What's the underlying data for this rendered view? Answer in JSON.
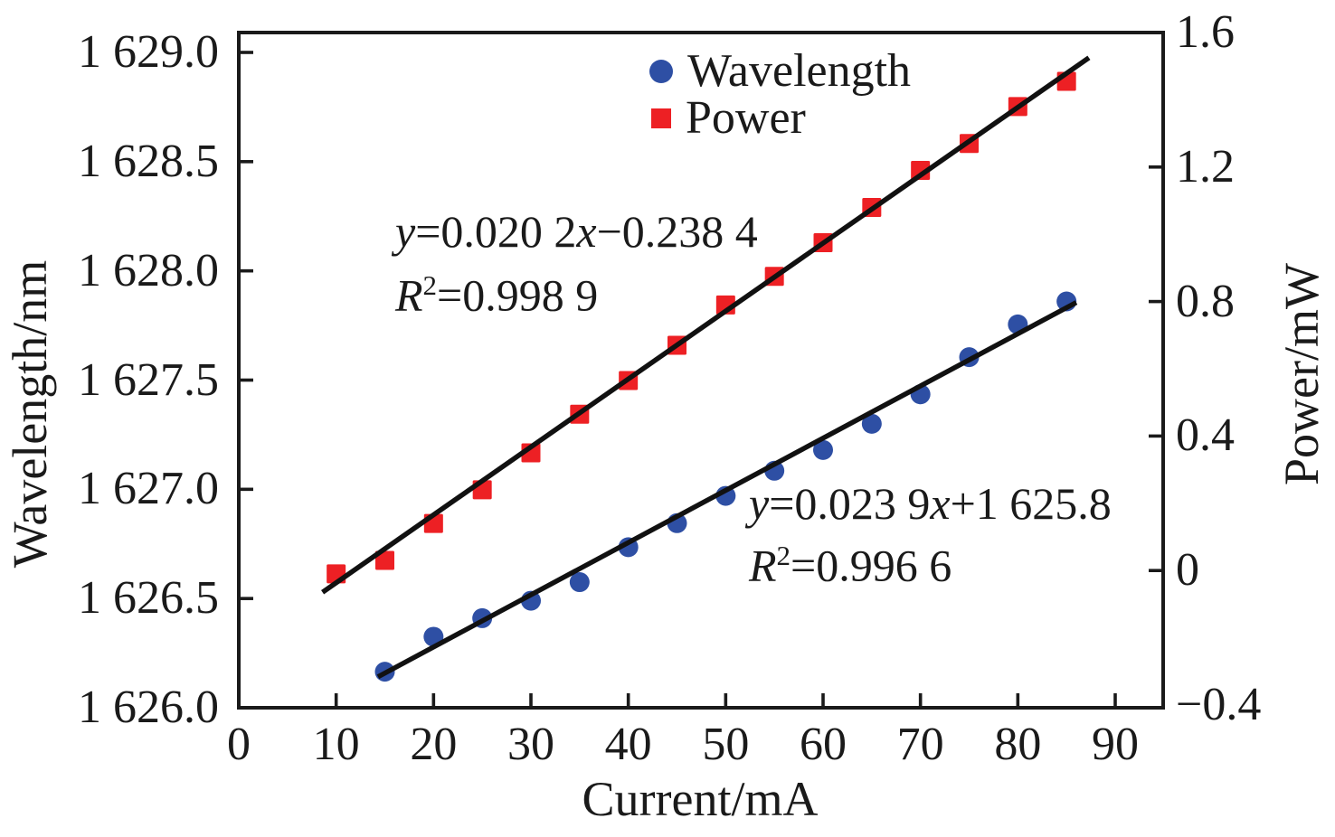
{
  "figure": {
    "background": "#ffffff",
    "axis_color": "#1a1a1a",
    "fit_line_color": "#111111"
  },
  "legend": {
    "items": [
      {
        "label": "Wavelength",
        "marker": "circle",
        "color": "#2e4fa4"
      },
      {
        "label": "Power",
        "marker": "square",
        "color": "#ed2024"
      }
    ]
  },
  "annotations": {
    "power_fit": {
      "var_y": "y",
      "body_1": "=0.020 2",
      "var_x": "x",
      "body_2": "−0.238 4",
      "r_var": "R",
      "r_exp": "2",
      "r_rest": "=0.998 9"
    },
    "wavelength_fit": {
      "var_y": "y",
      "body_1": "=0.023 9",
      "var_x": "x",
      "body_2": "+1 625.8",
      "r_var": "R",
      "r_exp": "2",
      "r_rest": "=0.996 6"
    }
  },
  "chart_data": {
    "type": "scatter",
    "title": "",
    "grid": false,
    "legend_position": "top-center-inside",
    "x_axis": {
      "label": "Current/mA",
      "min": 0,
      "max": 95,
      "tick_values": [
        0,
        10,
        20,
        30,
        40,
        50,
        60,
        70,
        80,
        90
      ],
      "tick_labels": [
        "0",
        "10",
        "20",
        "30",
        "40",
        "50",
        "60",
        "70",
        "80",
        "90"
      ]
    },
    "y_axis_left": {
      "label": "Wavelength/nm",
      "min": 1626.0,
      "max": 1629.1,
      "tick_values": [
        1626.0,
        1626.5,
        1627.0,
        1627.5,
        1628.0,
        1628.5,
        1629.0
      ],
      "tick_labels": [
        "1 626.0",
        "1 626.5",
        "1 627.0",
        "1 627.5",
        "1 628.0",
        "1 628.5",
        "1 629.0"
      ]
    },
    "y_axis_right": {
      "label": "Power/mW",
      "min": -0.4,
      "max": 1.6,
      "tick_values": [
        -0.4,
        0,
        0.4,
        0.8,
        1.2,
        1.6
      ],
      "tick_labels": [
        "−0.4",
        "0",
        "0.4",
        "0.8",
        "1.2",
        "1.6"
      ]
    },
    "series": [
      {
        "name": "Wavelength",
        "axis": "left",
        "marker": "circle",
        "color": "#2e4fa4",
        "x": [
          15,
          20,
          25,
          30,
          35,
          40,
          45,
          50,
          55,
          60,
          65,
          70,
          75,
          80,
          85
        ],
        "y": [
          1626.165,
          1626.325,
          1626.41,
          1626.49,
          1626.575,
          1626.735,
          1626.845,
          1626.97,
          1627.085,
          1627.18,
          1627.3,
          1627.435,
          1627.605,
          1627.755,
          1627.86
        ],
        "fit": {
          "slope": 0.0239,
          "intercept": 1625.8,
          "r_squared": 0.9966,
          "equation": "y=0.023 9x+1 625.8",
          "r_squared_label": "R²=0.996 6",
          "x_start": 14.3,
          "x_end": 86.0
        }
      },
      {
        "name": "Power",
        "axis": "right",
        "marker": "square",
        "color": "#ed2024",
        "x": [
          10,
          15,
          20,
          25,
          30,
          35,
          40,
          45,
          50,
          55,
          60,
          65,
          70,
          75,
          80,
          85
        ],
        "y": [
          -0.01,
          0.03,
          0.14,
          0.24,
          0.35,
          0.465,
          0.565,
          0.67,
          0.79,
          0.875,
          0.975,
          1.08,
          1.19,
          1.27,
          1.38,
          1.455
        ],
        "fit": {
          "slope": 0.0202,
          "intercept": -0.2384,
          "r_squared": 0.9989,
          "equation": "y=0.020 2x−0.238 4",
          "r_squared_label": "R²=0.998 9",
          "x_start": 8.6,
          "x_end": 87.3
        }
      }
    ]
  }
}
